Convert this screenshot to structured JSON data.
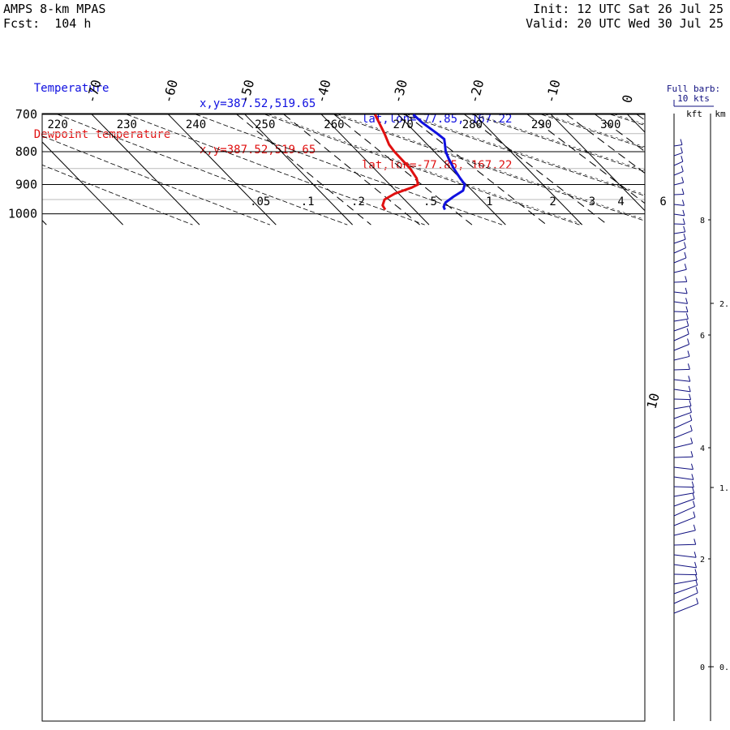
{
  "header": {
    "model": "AMPS 8-km MPAS",
    "forecast": "Fcst:  104 h",
    "init": "Init: 12 UTC Sat 26 Jul 25",
    "valid": "Valid: 20 UTC Wed 30 Jul 25"
  },
  "legend": {
    "temperature_label": "Temperature",
    "dewpoint_label": "Dewpoint temperature",
    "temperature_xy": "x,y=387.52,519.65",
    "dewpoint_xy": "x,y=387.52,519.65",
    "temperature_latlon": "lat,lon=-77.85, 167.22",
    "dewpoint_latlon": "lat,lon=-77.85, 167.22"
  },
  "colors": {
    "temperature": "#1010e0",
    "dewpoint": "#e01010",
    "wind_barb": "#101080",
    "frame": "#000000",
    "gridline_light": "#bbbbbb"
  },
  "chart_data": {
    "type": "line",
    "pressure_levels": [
      "700",
      "800",
      "900",
      "1000"
    ],
    "temperature_ticks": [
      "-70",
      "-60",
      "-50",
      "-40",
      "-30",
      "-20",
      "-10",
      "0",
      "10"
    ],
    "theta_labels": [
      "220",
      "230",
      "240",
      "250",
      "260",
      "270",
      "280",
      "290",
      "300"
    ],
    "mixing_ratio_labels": [
      ".05",
      ".1",
      ".2",
      ".5",
      "1",
      "2",
      "3",
      "4",
      "6"
    ],
    "ylim": [
      1040,
      700
    ],
    "ylog": true,
    "series": [
      {
        "name": "Temperature",
        "points": [
          {
            "p": 700,
            "t": -28.0
          },
          {
            "p": 720,
            "t": -27.9
          },
          {
            "p": 750,
            "t": -27.3
          },
          {
            "p": 765,
            "t": -27.1
          },
          {
            "p": 780,
            "t": -27.7
          },
          {
            "p": 800,
            "t": -28.5
          },
          {
            "p": 820,
            "t": -29.0
          },
          {
            "p": 850,
            "t": -29.6
          },
          {
            "p": 880,
            "t": -30.0
          },
          {
            "p": 900,
            "t": -30.2
          },
          {
            "p": 920,
            "t": -31.2
          },
          {
            "p": 940,
            "t": -33.2
          },
          {
            "p": 960,
            "t": -35.0
          },
          {
            "p": 975,
            "t": -35.8
          },
          {
            "p": 985,
            "t": -36.0
          }
        ]
      },
      {
        "name": "Dewpoint temperature",
        "points": [
          {
            "p": 700,
            "t": -33.0
          },
          {
            "p": 750,
            "t": -34.2
          },
          {
            "p": 780,
            "t": -35.0
          },
          {
            "p": 800,
            "t": -35.2
          },
          {
            "p": 850,
            "t": -35.3
          },
          {
            "p": 880,
            "t": -35.7
          },
          {
            "p": 900,
            "t": -36.3
          },
          {
            "p": 910,
            "t": -37.5
          },
          {
            "p": 930,
            "t": -40.5
          },
          {
            "p": 950,
            "t": -42.6
          },
          {
            "p": 970,
            "t": -43.6
          },
          {
            "p": 985,
            "t": -43.8
          }
        ]
      }
    ],
    "wind_panel": {
      "title": "Full barb:",
      "subtitle": "10 kts",
      "kft_label": "kft",
      "km_label": "km",
      "kft_ticks": [
        "8",
        "6",
        "4",
        "2",
        "0"
      ],
      "km_ticks": [
        "2.",
        "1.",
        "0."
      ]
    },
    "special_label": "10"
  }
}
